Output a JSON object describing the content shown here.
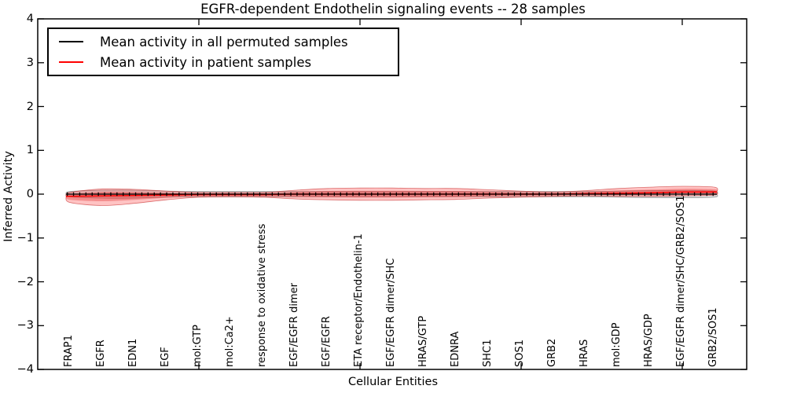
{
  "title": "EGFR-dependent Endothelin signaling events -- 28 samples",
  "legend": {
    "items": [
      {
        "label": "Mean activity in all permuted samples",
        "color": "#000000"
      },
      {
        "label": "Mean activity in patient samples",
        "color": "#ff0000"
      }
    ]
  },
  "axes": {
    "xlabel": "Cellular Entities",
    "ylabel": "Inferred Activity",
    "ytick_labels": [
      "4",
      "3",
      "2",
      "1",
      "0",
      "−1",
      "−2",
      "−3",
      "−4"
    ]
  },
  "chart_data": {
    "type": "violin",
    "title": "EGFR-dependent Endothelin signaling events -- 28 samples",
    "xlabel": "Cellular Entities",
    "ylabel": "Inferred Activity",
    "ylim": [
      -4,
      4
    ],
    "yticks": [
      4,
      3,
      2,
      1,
      0,
      -1,
      -2,
      -3,
      -4
    ],
    "top_axis_tick_categories": [
      5,
      10,
      15,
      20
    ],
    "grid": false,
    "legend_position": "upper left",
    "categories": [
      "FRAP1",
      "EGFR",
      "EDN1",
      "EGF",
      "mol:GTP",
      "mol:Ca2+",
      "response to oxidative stress",
      "EGF/EGFR dimer",
      "EGF/EGFR",
      "ETA receptor/Endothelin-1",
      "EGF/EGFR dimer/SHC",
      "HRAS/GTP",
      "EDNRA",
      "SHC1",
      "SOS1",
      "GRB2",
      "HRAS",
      "mol:GDP",
      "HRAS/GDP",
      "EGF/EGFR dimer/SHC/GRB2/SOS1",
      "GRB2/SOS1"
    ],
    "series": [
      {
        "name": "Mean activity in all permuted samples",
        "color": "#000000",
        "values": [
          0,
          0,
          0,
          0,
          0,
          0,
          0,
          0,
          0,
          0,
          0,
          0,
          0,
          0,
          0,
          0,
          0,
          0,
          0,
          0,
          0
        ],
        "spread": [
          0.06,
          0.09,
          0.09,
          0.07,
          0.06,
          0.06,
          0.06,
          0.06,
          0.06,
          0.06,
          0.06,
          0.06,
          0.06,
          0.06,
          0.06,
          0.06,
          0.06,
          0.07,
          0.08,
          0.08,
          0.07
        ]
      },
      {
        "name": "Mean activity in patient samples",
        "color": "#ff0000",
        "values": [
          -0.05,
          -0.04,
          -0.03,
          -0.02,
          -0.01,
          -0.01,
          -0.01,
          0,
          0,
          0,
          0,
          0,
          0,
          0,
          0,
          0,
          0.01,
          0.02,
          0.03,
          0.05,
          0.05
        ],
        "spread_upper": [
          0.09,
          0.16,
          0.14,
          0.09,
          0.05,
          0.05,
          0.05,
          0.09,
          0.13,
          0.14,
          0.14,
          0.13,
          0.13,
          0.1,
          0.07,
          0.05,
          0.07,
          0.11,
          0.13,
          0.13,
          0.11
        ],
        "spread_lower": [
          0.14,
          0.22,
          0.18,
          0.11,
          0.06,
          0.05,
          0.06,
          0.11,
          0.13,
          0.14,
          0.14,
          0.13,
          0.12,
          0.09,
          0.07,
          0.05,
          0.05,
          0.07,
          0.08,
          0.09,
          0.07
        ]
      }
    ]
  },
  "colors": {
    "patient_line": "#ff0000",
    "permuted_line": "#000000",
    "patient_fill": "rgba(255,40,40,0.28)",
    "patient_fill_inner": "rgba(220,20,20,0.30)",
    "patient_edge": "rgba(190,20,20,0.55)",
    "permuted_fill": "rgba(130,130,130,0.28)",
    "permuted_edge": "rgba(90,90,90,0.55)",
    "axis": "#000000",
    "background": "#ffffff"
  }
}
